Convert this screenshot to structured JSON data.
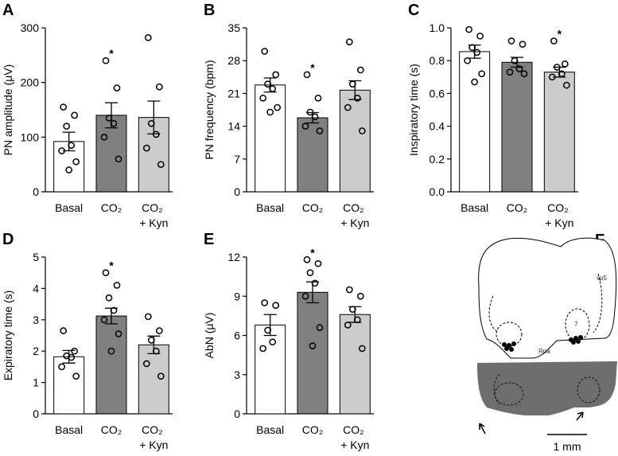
{
  "chart_data": [
    {
      "type": "bar",
      "panel": "A",
      "ylabel": "PN amplitude (μV)",
      "categories": [
        "Basal",
        "CO₂",
        "CO₂ + Kyn"
      ],
      "values": [
        92,
        140,
        136
      ],
      "errors": [
        17,
        23,
        30
      ],
      "colors": [
        "#ffffff",
        "#808080",
        "#cccccc"
      ],
      "points": [
        [
          155,
          140,
          120,
          85,
          75,
          55,
          40
        ],
        [
          240,
          190,
          135,
          125,
          100,
          60
        ],
        [
          282,
          192,
          125,
          105,
          80,
          50
        ]
      ],
      "ylim": [
        0,
        300
      ],
      "yticks": [
        0,
        100,
        200,
        300
      ],
      "annotations": [
        {
          "text": "*",
          "x": "CO₂"
        }
      ]
    },
    {
      "type": "bar",
      "panel": "B",
      "ylabel": "PN frequency (bpm)",
      "categories": [
        "Basal",
        "CO₂",
        "CO₂ + Kyn"
      ],
      "values": [
        22.8,
        15.8,
        21.7
      ],
      "errors": [
        1.5,
        1.1,
        2.0
      ],
      "colors": [
        "#ffffff",
        "#808080",
        "#cccccc"
      ],
      "points": [
        [
          30,
          25,
          23,
          22,
          20,
          18,
          17
        ],
        [
          25,
          20,
          17,
          16,
          14,
          13
        ],
        [
          32,
          26,
          23,
          20,
          18,
          13
        ]
      ],
      "ylim": [
        0,
        35
      ],
      "yticks": [
        0,
        7,
        14,
        21,
        28,
        35
      ],
      "annotations": [
        {
          "text": "*",
          "x": "CO₂"
        }
      ]
    },
    {
      "type": "bar",
      "panel": "C",
      "ylabel": "Inspiratory time (s)",
      "categories": [
        "Basal",
        "CO₂",
        "CO₂ + Kyn"
      ],
      "values": [
        0.855,
        0.79,
        0.73
      ],
      "errors": [
        0.04,
        0.03,
        0.03
      ],
      "colors": [
        "#ffffff",
        "#808080",
        "#cccccc"
      ],
      "points": [
        [
          0.99,
          0.95,
          0.88,
          0.85,
          0.8,
          0.72,
          0.67
        ],
        [
          0.92,
          0.9,
          0.8,
          0.75,
          0.73,
          0.72
        ],
        [
          0.92,
          0.78,
          0.76,
          0.72,
          0.7,
          0.65
        ]
      ],
      "ylim": [
        0,
        1
      ],
      "yticks": [
        {
          "value": 0,
          "label": "0.0"
        },
        0.2,
        0.4,
        0.6,
        0.8,
        {
          "value": 1,
          "label": "1.0"
        }
      ],
      "annotations": [
        {
          "text": "*",
          "x": "CO₂ + Kyn"
        }
      ]
    },
    {
      "type": "bar",
      "panel": "D",
      "ylabel": "Expiratory time (s)",
      "categories": [
        "Basal",
        "CO₂",
        "CO₂ + Kyn"
      ],
      "values": [
        1.82,
        3.12,
        2.2
      ],
      "errors": [
        0.2,
        0.25,
        0.28
      ],
      "colors": [
        "#ffffff",
        "#808080",
        "#cccccc"
      ],
      "points": [
        [
          2.65,
          2.0,
          1.85,
          1.8,
          1.5,
          1.2
        ],
        [
          4.5,
          4.1,
          3.7,
          3.3,
          3.0,
          2.55,
          2.0
        ],
        [
          3.1,
          2.65,
          2.35,
          2.0,
          1.6,
          1.2
        ]
      ],
      "ylim": [
        0,
        5
      ],
      "yticks": [
        0,
        1,
        2,
        3,
        4,
        5
      ],
      "annotations": [
        {
          "text": "*",
          "x": "CO₂"
        }
      ]
    },
    {
      "type": "bar",
      "panel": "E",
      "ylabel": "AbN (μV)",
      "categories": [
        "Basal",
        "CO₂",
        "CO₂ + Kyn"
      ],
      "values": [
        6.8,
        9.3,
        7.6
      ],
      "errors": [
        0.8,
        0.8,
        0.6
      ],
      "colors": [
        "#ffffff",
        "#808080",
        "#cccccc"
      ],
      "points": [
        [
          8.5,
          8.3,
          6.4,
          5.5,
          5.0
        ],
        [
          11.8,
          11.5,
          10.8,
          10.0,
          9.0,
          6.6,
          5.2
        ],
        [
          9.5,
          9.0,
          8.0,
          7.2,
          6.8,
          5.0
        ]
      ],
      "ylim": [
        0,
        12
      ],
      "yticks": [
        0,
        3,
        6,
        9,
        12
      ],
      "annotations": [
        {
          "text": "*",
          "x": "CO₂"
        }
      ]
    }
  ],
  "panel_f": {
    "label": "F",
    "region_labels": [
      "sp5",
      "7",
      "Rpa"
    ],
    "scale_bar": "1 mm"
  }
}
